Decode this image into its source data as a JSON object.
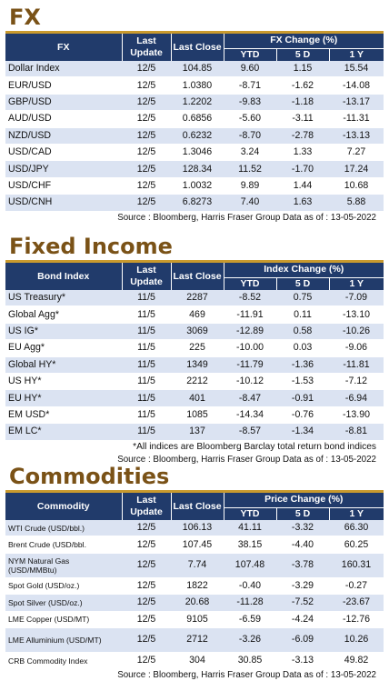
{
  "fx": {
    "title": "FX",
    "headers": {
      "name": "FX",
      "update": "Last Update",
      "close": "Last Close",
      "change": "FX Change (%)",
      "ytd": "YTD",
      "d5": "5 D",
      "y1": "1 Y"
    },
    "rows": [
      {
        "name": "Dollar Index",
        "update": "12/5",
        "close": "104.85",
        "ytd": "9.60",
        "d5": "1.15",
        "y1": "15.54"
      },
      {
        "name": "EUR/USD",
        "update": "12/5",
        "close": "1.0380",
        "ytd": "-8.71",
        "d5": "-1.62",
        "y1": "-14.08"
      },
      {
        "name": "GBP/USD",
        "update": "12/5",
        "close": "1.2202",
        "ytd": "-9.83",
        "d5": "-1.18",
        "y1": "-13.17"
      },
      {
        "name": "AUD/USD",
        "update": "12/5",
        "close": "0.6856",
        "ytd": "-5.60",
        "d5": "-3.11",
        "y1": "-11.31"
      },
      {
        "name": "NZD/USD",
        "update": "12/5",
        "close": "0.6232",
        "ytd": "-8.70",
        "d5": "-2.78",
        "y1": "-13.13"
      },
      {
        "name": "USD/CAD",
        "update": "12/5",
        "close": "1.3046",
        "ytd": "3.24",
        "d5": "1.33",
        "y1": "7.27"
      },
      {
        "name": "USD/JPY",
        "update": "12/5",
        "close": "128.34",
        "ytd": "11.52",
        "d5": "-1.70",
        "y1": "17.24"
      },
      {
        "name": "USD/CHF",
        "update": "12/5",
        "close": "1.0032",
        "ytd": "9.89",
        "d5": "1.44",
        "y1": "10.68"
      },
      {
        "name": "USD/CNH",
        "update": "12/5",
        "close": "6.8273",
        "ytd": "7.40",
        "d5": "1.63",
        "y1": "5.88"
      }
    ],
    "source": "Source : Bloomberg, Harris Fraser Group Data as of : 13-05-2022"
  },
  "fixed_income": {
    "title": "Fixed Income",
    "headers": {
      "name": "Bond Index",
      "update": "Last Update",
      "close": "Last Close",
      "change": "Index Change (%)",
      "ytd": "YTD",
      "d5": "5 D",
      "y1": "1 Y"
    },
    "rows": [
      {
        "name": "US Treasury*",
        "update": "11/5",
        "close": "2287",
        "ytd": "-8.52",
        "d5": "0.75",
        "y1": "-7.09"
      },
      {
        "name": "Global Agg*",
        "update": "11/5",
        "close": "469",
        "ytd": "-11.91",
        "d5": "0.11",
        "y1": "-13.10"
      },
      {
        "name": "US IG*",
        "update": "11/5",
        "close": "3069",
        "ytd": "-12.89",
        "d5": "0.58",
        "y1": "-10.26"
      },
      {
        "name": "EU Agg*",
        "update": "11/5",
        "close": "225",
        "ytd": "-10.00",
        "d5": "0.03",
        "y1": "-9.06"
      },
      {
        "name": "Global HY*",
        "update": "11/5",
        "close": "1349",
        "ytd": "-11.79",
        "d5": "-1.36",
        "y1": "-11.81"
      },
      {
        "name": "US HY*",
        "update": "11/5",
        "close": "2212",
        "ytd": "-10.12",
        "d5": "-1.53",
        "y1": "-7.12"
      },
      {
        "name": "EU HY*",
        "update": "11/5",
        "close": "401",
        "ytd": "-8.47",
        "d5": "-0.91",
        "y1": "-6.94"
      },
      {
        "name": "EM USD*",
        "update": "11/5",
        "close": "1085",
        "ytd": "-14.34",
        "d5": "-0.76",
        "y1": "-13.90"
      },
      {
        "name": "EM LC*",
        "update": "11/5",
        "close": "137",
        "ytd": "-8.57",
        "d5": "-1.34",
        "y1": "-8.81"
      }
    ],
    "note": "*All indices are Bloomberg Barclay total return bond indices",
    "source": "Source : Bloomberg, Harris Fraser Group Data as of : 13-05-2022"
  },
  "commodities": {
    "title": "Commodities",
    "headers": {
      "name": "Commodity",
      "update": "Last Update",
      "close": "Last Close",
      "change": "Price Change (%)",
      "ytd": "YTD",
      "d5": "5 D",
      "y1": "1 Y"
    },
    "rows": [
      {
        "name": "WTI Crude (USD/bbl.)",
        "update": "12/5",
        "close": "106.13",
        "ytd": "41.11",
        "d5": "-3.32",
        "y1": "66.30",
        "tall": false
      },
      {
        "name": "Brent Crude (USD/bbl.",
        "update": "12/5",
        "close": "107.45",
        "ytd": "38.15",
        "d5": "-4.40",
        "y1": "60.25",
        "tall": false
      },
      {
        "name": "NYM Natural Gas (USD/MMBtu)",
        "update": "12/5",
        "close": "7.74",
        "ytd": "107.48",
        "d5": "-3.78",
        "y1": "160.31",
        "tall": true
      },
      {
        "name": "Spot Gold (USD/oz.)",
        "update": "12/5",
        "close": "1822",
        "ytd": "-0.40",
        "d5": "-3.29",
        "y1": "-0.27",
        "tall": false
      },
      {
        "name": "Spot Silver  (USD/oz.)",
        "update": "12/5",
        "close": "20.68",
        "ytd": "-11.28",
        "d5": "-7.52",
        "y1": "-23.67",
        "tall": false
      },
      {
        "name": "LME Copper  (USD/MT)",
        "update": "12/5",
        "close": "9105",
        "ytd": "-6.59",
        "d5": "-4.24",
        "y1": "-12.76",
        "tall": false
      },
      {
        "name": "LME Alluminium (USD/MT)",
        "update": "12/5",
        "close": "2712",
        "ytd": "-3.26",
        "d5": "-6.09",
        "y1": "10.26",
        "tall": true
      },
      {
        "name": "CRB Commodity Index",
        "update": "12/5",
        "close": "304",
        "ytd": "30.85",
        "d5": "-3.13",
        "y1": "49.82",
        "tall": false
      }
    ],
    "source": "Source : Bloomberg, Harris Fraser Group Data as of : 13-05-2022"
  }
}
